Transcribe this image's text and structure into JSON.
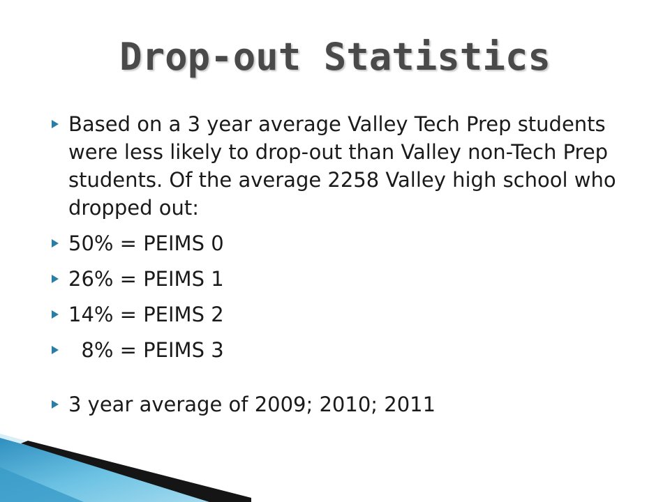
{
  "slide": {
    "title": "Drop-out Statistics",
    "bullets": [
      "Based on a 3 year average Valley Tech Prep students were less likely to drop-out than Valley non-Tech Prep students. Of the average 2258 Valley high school who dropped out:",
      "50% = PEIMS 0",
      "26% = PEIMS 1",
      "14% = PEIMS 2",
      "  8% = PEIMS 3",
      "3 year average of 2009; 2010; 2011"
    ]
  },
  "colors": {
    "title": "#4a4a4a",
    "text": "#1a1a1a",
    "bullet_marker": "#2a7ea6",
    "accent_blue": "#4aa8d0",
    "accent_dark": "#111111"
  },
  "icons": {
    "bullet": "triangle-right-icon"
  }
}
